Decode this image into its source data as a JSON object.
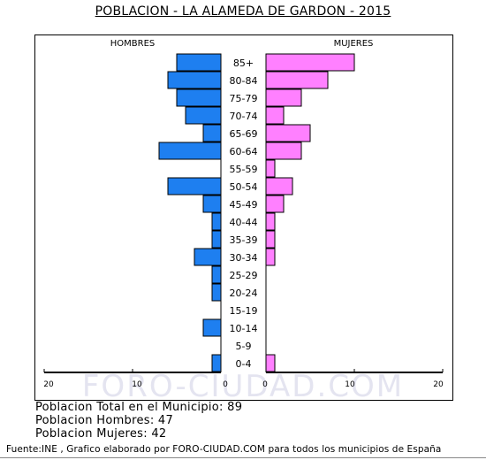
{
  "title": "POBLACION - LA ALAMEDA DE GARDON - 2015",
  "chart_data": {
    "type": "bar",
    "orientation": "horizontal-pyramid",
    "left_label": "HOMBRES",
    "right_label": "MUJERES",
    "categories": [
      "85+",
      "80-84",
      "75-79",
      "70-74",
      "65-69",
      "60-64",
      "55-59",
      "50-54",
      "45-49",
      "40-44",
      "35-39",
      "30-34",
      "25-29",
      "20-24",
      "15-19",
      "10-14",
      "5-9",
      "0-4"
    ],
    "series": [
      {
        "name": "HOMBRES",
        "color": "#1e7ff0",
        "values": [
          5,
          6,
          5,
          4,
          2,
          7,
          0,
          6,
          2,
          1,
          1,
          3,
          1,
          1,
          0,
          2,
          0,
          1
        ]
      },
      {
        "name": "MUJERES",
        "color": "#ff80ff",
        "values": [
          10,
          7,
          4,
          2,
          5,
          4,
          1,
          3,
          2,
          1,
          1,
          1,
          0,
          0,
          0,
          0,
          0,
          1
        ]
      }
    ],
    "x_ticks_left": [
      "20",
      "10",
      "0"
    ],
    "x_ticks_right": [
      "0",
      "10",
      "20"
    ],
    "xlim": [
      0,
      20
    ],
    "watermark": "FORO-CIUDAD.COM"
  },
  "stats": {
    "total": "Poblacion Total en el Municipio: 89",
    "hombres": "Poblacion Hombres: 47",
    "mujeres": "Poblacion Mujeres: 42"
  },
  "footer": "Fuente:INE , Grafico elaborado por FORO-CIUDAD.COM para todos los municipios de España"
}
